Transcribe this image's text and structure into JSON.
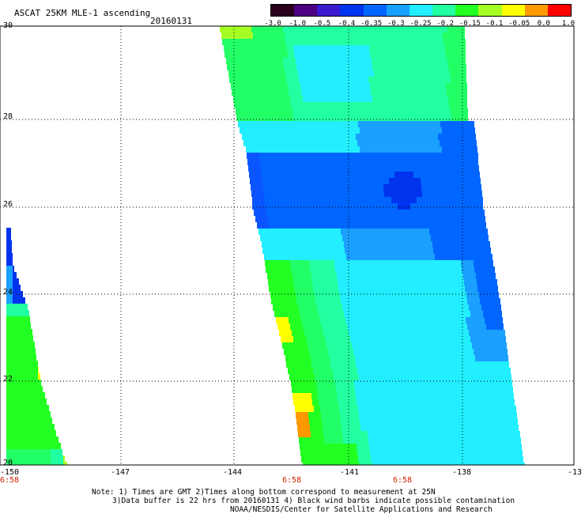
{
  "header": {
    "title": "ASCAT 25KM MLE-1 ascending",
    "date": "20160131"
  },
  "colorbar": {
    "labels": [
      "-3.0",
      "-1.0",
      "-0.5",
      "-0.4",
      "-0.35",
      "-0.3",
      "-0.25",
      "-0.2",
      "-0.15",
      "-0.1",
      "-0.05",
      "0.0",
      "1.0"
    ],
    "colors": [
      "#2a001e",
      "#4b0082",
      "#3a1acc",
      "#0033ee",
      "#0066ff",
      "#1aa0ff",
      "#22eeff",
      "#22ffa0",
      "#22ff22",
      "#a6ff22",
      "#ffff00",
      "#ff9900",
      "#ff0000"
    ]
  },
  "axes": {
    "lon_labels": [
      "-150",
      "-147",
      "-144",
      "-141",
      "-138",
      "-13"
    ],
    "lat_labels": [
      "30",
      "28",
      "26",
      "24",
      "22",
      "20"
    ],
    "time_labels": [
      "6:58",
      "6:58",
      "6:58"
    ]
  },
  "notes": {
    "line1": "Note: 1) Times are GMT 2)Times along bottom correspond to measurement at 25N",
    "line2": "3)Data buffer is 22 hrs from 20160131 4) Black wind barbs indicate possible contamination",
    "line3": "NOAA/NESDIS/Center for Satellite Applications and Research"
  }
}
